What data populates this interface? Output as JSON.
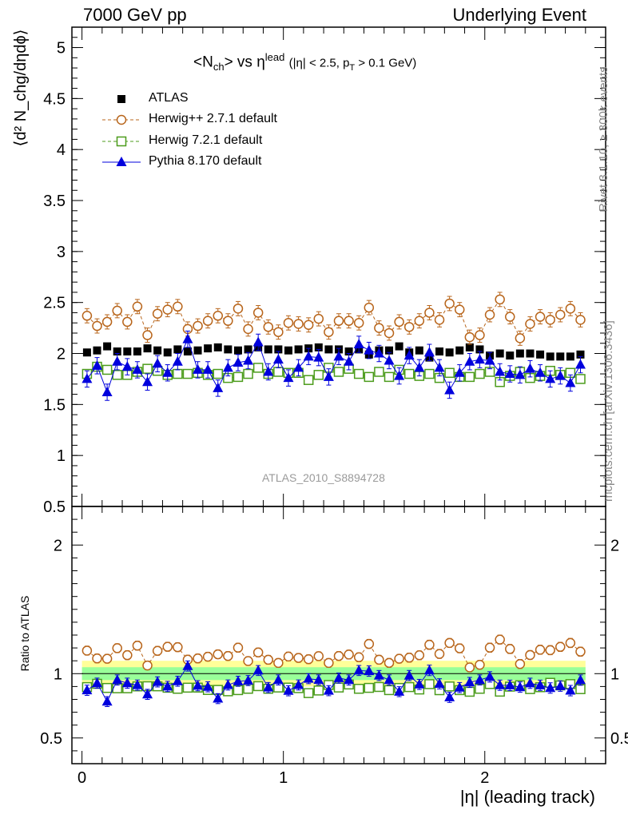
{
  "header": {
    "left": "7000 GeV pp",
    "right": "Underlying Event"
  },
  "side_labels": {
    "rivet": "Rivet 3.1.10, ≥ 300k events",
    "mcplots": "mcplots.cern.ch [arXiv:1306.3436]"
  },
  "plot_title": {
    "main": "<N",
    "sub1": "ch",
    "mid": "> vs η",
    "sup": "lead",
    "cut": "(|η| < 2.5, p",
    "cut_sub": "T",
    "cut_end": " > 0.1 GeV)"
  },
  "watermark": "ATLAS_2010_S8894728",
  "legend": [
    {
      "label": "ATLAS",
      "style": "data"
    },
    {
      "label": "Herwig++ 2.7.1 default",
      "style": "herwigpp"
    },
    {
      "label": "Herwig 7.2.1 default",
      "style": "herwig7"
    },
    {
      "label": "Pythia 8.170 default",
      "style": "pythia"
    }
  ],
  "colors": {
    "atlas": "#000000",
    "herwigpp": "#b8651b",
    "herwig7": "#4c9c1c",
    "pythia": "#0000dd",
    "band_yellow": "#ffff99",
    "band_green": "#99ff99"
  },
  "chart_data": [
    {
      "type": "scatter",
      "panel": "main",
      "ylabel": "⟨d² N_chg/dηdϕ⟩",
      "xlim": [
        -0.05,
        2.6
      ],
      "ylim": [
        0.5,
        5.2
      ],
      "yticks": [
        "0.5",
        "1",
        "1.5",
        "2",
        "2.5",
        "3",
        "3.5",
        "4",
        "4.5",
        "5"
      ],
      "x": [
        0.025,
        0.075,
        0.125,
        0.175,
        0.225,
        0.275,
        0.325,
        0.375,
        0.425,
        0.475,
        0.525,
        0.575,
        0.625,
        0.675,
        0.725,
        0.775,
        0.825,
        0.875,
        0.925,
        0.975,
        1.025,
        1.075,
        1.125,
        1.175,
        1.225,
        1.275,
        1.325,
        1.375,
        1.425,
        1.475,
        1.525,
        1.575,
        1.625,
        1.675,
        1.725,
        1.775,
        1.825,
        1.875,
        1.925,
        1.975,
        2.025,
        2.075,
        2.125,
        2.175,
        2.225,
        2.275,
        2.325,
        2.375,
        2.425,
        2.475
      ],
      "series": [
        {
          "name": "ATLAS",
          "key": "atlas",
          "values": [
            2.01,
            2.03,
            2.07,
            2.02,
            2.02,
            2.02,
            2.05,
            2.03,
            2.01,
            2.04,
            2.02,
            2.03,
            2.05,
            2.06,
            2.04,
            2.03,
            2.04,
            2.06,
            2.04,
            2.04,
            2.03,
            2.04,
            2.05,
            2.06,
            2.04,
            2.04,
            2.02,
            2.04,
            1.99,
            2.03,
            2.03,
            2.07,
            2.01,
            2.03,
            1.96,
            2.02,
            2.01,
            2.03,
            2.06,
            2.04,
            1.98,
            2.0,
            1.98,
            2.0,
            2.0,
            1.99,
            1.97,
            1.97,
            1.97,
            1.99
          ],
          "errors": [
            0.02,
            0.02,
            0.02,
            0.02,
            0.02,
            0.02,
            0.02,
            0.02,
            0.02,
            0.02,
            0.02,
            0.02,
            0.02,
            0.02,
            0.02,
            0.02,
            0.02,
            0.02,
            0.02,
            0.02,
            0.02,
            0.02,
            0.02,
            0.02,
            0.02,
            0.02,
            0.02,
            0.02,
            0.02,
            0.02,
            0.02,
            0.02,
            0.02,
            0.02,
            0.02,
            0.02,
            0.02,
            0.02,
            0.02,
            0.02,
            0.02,
            0.02,
            0.02,
            0.02,
            0.02,
            0.02,
            0.02,
            0.02,
            0.02,
            0.02
          ]
        },
        {
          "name": "Herwig++ 2.7.1 default",
          "key": "herwigpp",
          "values": [
            2.37,
            2.27,
            2.31,
            2.42,
            2.31,
            2.46,
            2.18,
            2.39,
            2.43,
            2.46,
            2.24,
            2.27,
            2.32,
            2.37,
            2.32,
            2.44,
            2.24,
            2.4,
            2.26,
            2.21,
            2.3,
            2.29,
            2.28,
            2.34,
            2.21,
            2.32,
            2.32,
            2.3,
            2.45,
            2.25,
            2.2,
            2.31,
            2.26,
            2.32,
            2.4,
            2.33,
            2.49,
            2.43,
            2.16,
            2.18,
            2.38,
            2.53,
            2.36,
            2.15,
            2.29,
            2.36,
            2.33,
            2.38,
            2.44,
            2.33
          ],
          "errors": [
            0.07,
            0.07,
            0.07,
            0.07,
            0.07,
            0.07,
            0.07,
            0.07,
            0.07,
            0.07,
            0.07,
            0.07,
            0.07,
            0.07,
            0.07,
            0.07,
            0.07,
            0.07,
            0.07,
            0.07,
            0.07,
            0.07,
            0.07,
            0.07,
            0.07,
            0.07,
            0.07,
            0.07,
            0.07,
            0.07,
            0.07,
            0.07,
            0.07,
            0.07,
            0.07,
            0.07,
            0.07,
            0.07,
            0.07,
            0.07,
            0.07,
            0.07,
            0.07,
            0.07,
            0.07,
            0.07,
            0.07,
            0.07,
            0.07,
            0.07
          ]
        },
        {
          "name": "Herwig 7.2.1 default",
          "key": "herwig7",
          "values": [
            1.8,
            1.87,
            1.84,
            1.79,
            1.79,
            1.82,
            1.85,
            1.83,
            1.79,
            1.8,
            1.8,
            1.81,
            1.79,
            1.8,
            1.76,
            1.77,
            1.8,
            1.86,
            1.8,
            1.82,
            1.81,
            1.81,
            1.74,
            1.79,
            1.86,
            1.82,
            1.85,
            1.8,
            1.77,
            1.82,
            1.77,
            1.84,
            1.8,
            1.78,
            1.8,
            1.76,
            1.81,
            1.77,
            1.77,
            1.8,
            1.82,
            1.72,
            1.78,
            1.82,
            1.76,
            1.78,
            1.83,
            1.79,
            1.81,
            1.75
          ],
          "errors": [
            0.04,
            0.04,
            0.04,
            0.04,
            0.04,
            0.04,
            0.04,
            0.04,
            0.04,
            0.04,
            0.04,
            0.04,
            0.04,
            0.04,
            0.04,
            0.04,
            0.04,
            0.04,
            0.04,
            0.04,
            0.04,
            0.04,
            0.04,
            0.04,
            0.04,
            0.04,
            0.04,
            0.04,
            0.04,
            0.04,
            0.04,
            0.04,
            0.04,
            0.04,
            0.04,
            0.04,
            0.04,
            0.04,
            0.04,
            0.04,
            0.04,
            0.04,
            0.04,
            0.04,
            0.04,
            0.04,
            0.04,
            0.04,
            0.04,
            0.04
          ]
        },
        {
          "name": "Pythia 8.170 default",
          "key": "pythia",
          "values": [
            1.75,
            1.88,
            1.62,
            1.92,
            1.87,
            1.84,
            1.72,
            1.9,
            1.81,
            1.92,
            2.14,
            1.84,
            1.84,
            1.66,
            1.86,
            1.91,
            1.93,
            2.11,
            1.82,
            1.94,
            1.76,
            1.86,
            1.97,
            1.96,
            1.77,
            1.97,
            1.92,
            2.09,
            2.03,
            2.0,
            1.93,
            1.78,
            1.98,
            1.86,
            2.01,
            1.86,
            1.64,
            1.81,
            1.92,
            1.94,
            1.93,
            1.82,
            1.8,
            1.79,
            1.85,
            1.81,
            1.75,
            1.78,
            1.71,
            1.89
          ],
          "errors": [
            0.08,
            0.08,
            0.08,
            0.08,
            0.08,
            0.08,
            0.08,
            0.08,
            0.08,
            0.08,
            0.08,
            0.08,
            0.08,
            0.08,
            0.08,
            0.08,
            0.08,
            0.08,
            0.08,
            0.08,
            0.08,
            0.08,
            0.08,
            0.08,
            0.08,
            0.08,
            0.08,
            0.08,
            0.08,
            0.08,
            0.08,
            0.08,
            0.08,
            0.08,
            0.08,
            0.08,
            0.08,
            0.08,
            0.08,
            0.08,
            0.08,
            0.08,
            0.08,
            0.08,
            0.08,
            0.08,
            0.08,
            0.08,
            0.08,
            0.08
          ]
        }
      ]
    },
    {
      "type": "scatter",
      "panel": "ratio",
      "ylabel": "Ratio to ATLAS",
      "xlabel": "|η| (leading track)",
      "xlim": [
        -0.05,
        2.6
      ],
      "ylim": [
        0.3,
        2.3
      ],
      "xticks": [
        "0",
        "1",
        "2"
      ],
      "yticks": [
        "0.5",
        "1",
        "2"
      ],
      "band": {
        "yellow_halfwidth": 0.1,
        "green_halfwidth": 0.05
      }
    }
  ]
}
